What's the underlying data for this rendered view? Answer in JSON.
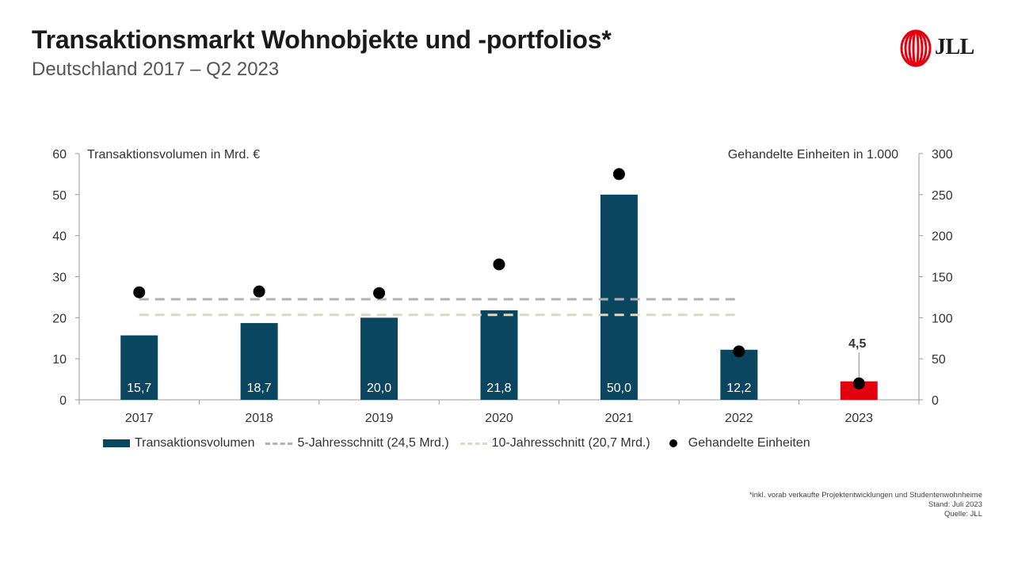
{
  "header": {
    "title": "Transaktionsmarkt Wohnobjekte und -portfolios*",
    "subtitle": "Deutschland 2017 – Q2 2023",
    "logo_text": "JLL"
  },
  "colors": {
    "bar": "#0b4660",
    "bar_highlight": "#e3000f",
    "avg5": "#b0b0b0",
    "avg10": "#dcd8c6",
    "dot": "#000000",
    "logo_red": "#e3000f"
  },
  "chart_data": {
    "type": "bar",
    "categories": [
      "2017",
      "2018",
      "2019",
      "2020",
      "2021",
      "2022",
      "2023"
    ],
    "y_left_label": "Transaktionsvolumen in Mrd. €",
    "y_right_label": "Gehandelte Einheiten in 1.000",
    "ylim_left": [
      0,
      60
    ],
    "ylim_right": [
      0,
      300
    ],
    "y_left_ticks": [
      0,
      10,
      20,
      30,
      40,
      50,
      60
    ],
    "y_right_ticks": [
      0,
      50,
      100,
      150,
      200,
      250,
      300
    ],
    "series": [
      {
        "name": "Transaktionsvolumen",
        "type": "bar",
        "axis": "left",
        "values": [
          15.7,
          18.7,
          20.0,
          21.8,
          50.0,
          12.2,
          4.5
        ],
        "labels": [
          "15,7",
          "18,7",
          "20,0",
          "21,8",
          "50,0",
          "12,2",
          ""
        ]
      },
      {
        "name": "5-Jahresschnitt (24,5 Mrd.)",
        "type": "line-dashed",
        "axis": "left",
        "value": 24.5
      },
      {
        "name": "10-Jahresschnitt (20,7 Mrd.)",
        "type": "line-dashed",
        "axis": "left",
        "value": 20.7
      },
      {
        "name": "Gehandelte Einheiten",
        "type": "scatter",
        "axis": "right",
        "values": [
          131,
          132,
          130,
          165,
          275,
          59,
          20
        ]
      }
    ],
    "callout": {
      "category": "2023",
      "text": "4,5"
    },
    "grid": false,
    "legend_position": "bottom"
  },
  "footnotes": [
    "*inkl. vorab verkaufte Projektentwicklungen und Studentenwohnheime",
    "Stand: Juli 2023",
    "Quelle: JLL"
  ]
}
